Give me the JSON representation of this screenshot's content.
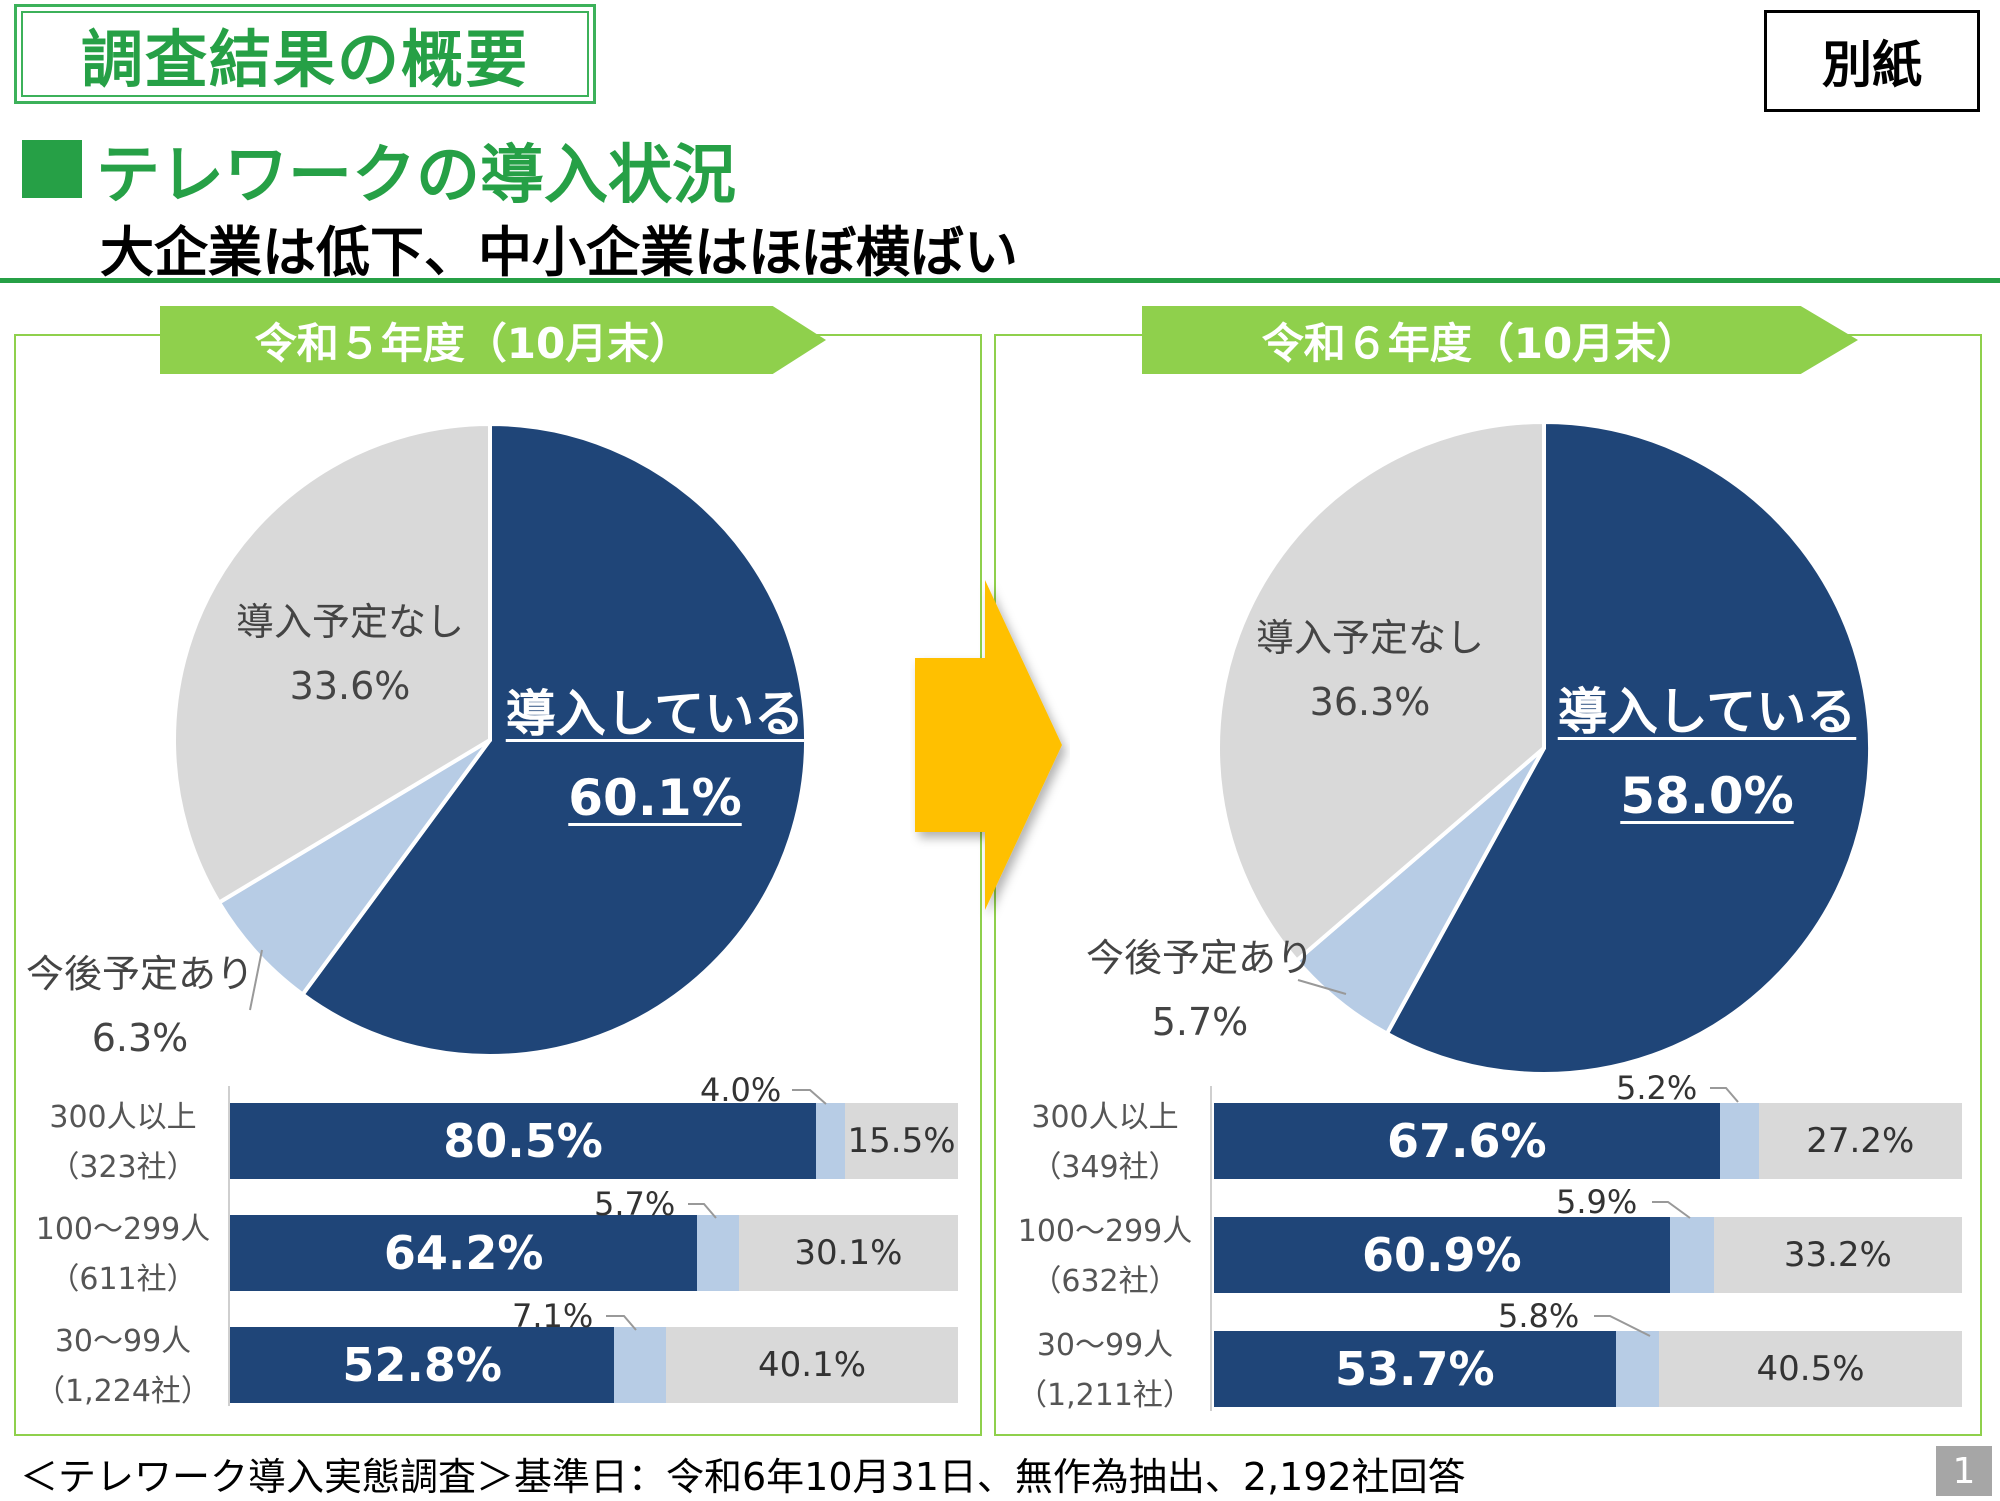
{
  "header": {
    "title": "調査結果の概要",
    "attachment_label": "別紙",
    "section_title": "テレワークの導入状況",
    "section_subtitle": "大企業は低下、中小企業はほぼ横ばい"
  },
  "colors": {
    "brand_green": "#26a046",
    "ribbon_green": "#8fd04c",
    "introduced": "#1f4578",
    "planned": "#b7cce5",
    "no_plan": "#d9d9d9",
    "arrow": "#ffc000"
  },
  "panels": [
    {
      "ribbon": "令和５年度（10月末）",
      "pie_labels": {
        "introduced_name": "導入している",
        "introduced_value": "60.1%",
        "planned_name": "今後予定あり",
        "planned_value": "6.3%",
        "none_name": "導入予定なし",
        "none_value": "33.6%"
      },
      "rows": [
        {
          "size": "300人以上",
          "count": "（323社）",
          "a": "80.5%",
          "b": "4.0%",
          "c": "15.5%"
        },
        {
          "size": "100〜299人",
          "count": "（611社）",
          "a": "64.2%",
          "b": "5.7%",
          "c": "30.1%"
        },
        {
          "size": "30〜99人",
          "count": "（1,224社）",
          "a": "52.8%",
          "b": "7.1%",
          "c": "40.1%"
        }
      ]
    },
    {
      "ribbon": "令和６年度（10月末）",
      "pie_labels": {
        "introduced_name": "導入している",
        "introduced_value": "58.0%",
        "planned_name": "今後予定あり",
        "planned_value": "5.7%",
        "none_name": "導入予定なし",
        "none_value": "36.3%"
      },
      "rows": [
        {
          "size": "300人以上",
          "count": "（349社）",
          "a": "67.6%",
          "b": "5.2%",
          "c": "27.2%"
        },
        {
          "size": "100〜299人",
          "count": "（632社）",
          "a": "60.9%",
          "b": "5.9%",
          "c": "33.2%"
        },
        {
          "size": "30〜99人",
          "count": "（1,211社）",
          "a": "53.7%",
          "b": "5.8%",
          "c": "40.5%"
        }
      ]
    }
  ],
  "chart_data": [
    {
      "type": "pie",
      "title": "令和５年度（10月末）",
      "categories": [
        "導入している",
        "今後予定あり",
        "導入予定なし"
      ],
      "values": [
        60.1,
        6.3,
        33.6
      ],
      "colors": [
        "#1f4578",
        "#b7cce5",
        "#d9d9d9"
      ]
    },
    {
      "type": "bar",
      "orientation": "horizontal",
      "stacked": true,
      "title": "令和５年度（10月末）",
      "categories": [
        "300人以上（323社）",
        "100〜299人（611社）",
        "30〜99人（1,224社）"
      ],
      "series": [
        {
          "values": [
            80.5,
            64.2,
            52.8
          ]
        },
        {
          "values": [
            4.0,
            5.7,
            7.1
          ]
        },
        {
          "values": [
            15.5,
            30.1,
            40.1
          ]
        }
      ],
      "xlim": [
        0,
        100
      ]
    },
    {
      "type": "pie",
      "title": "令和６年度（10月末）",
      "categories": [
        "導入している",
        "今後予定あり",
        "導入予定なし"
      ],
      "values": [
        58.0,
        5.7,
        36.3
      ],
      "colors": [
        "#1f4578",
        "#b7cce5",
        "#d9d9d9"
      ]
    },
    {
      "type": "bar",
      "orientation": "horizontal",
      "stacked": true,
      "title": "令和６年度（10月末）",
      "categories": [
        "300人以上（349社）",
        "100〜299人（632社）",
        "30〜99人（1,211社）"
      ],
      "series": [
        {
          "values": [
            67.6,
            60.9,
            53.7
          ]
        },
        {
          "values": [
            5.2,
            5.9,
            5.8
          ]
        },
        {
          "values": [
            27.2,
            33.2,
            40.5
          ]
        }
      ],
      "xlim": [
        0,
        100
      ]
    }
  ],
  "footer": {
    "note": "＜テレワーク導入実態調査＞基準日：令和6年10月31日、無作為抽出、2,192社回答",
    "page_number": "1"
  }
}
